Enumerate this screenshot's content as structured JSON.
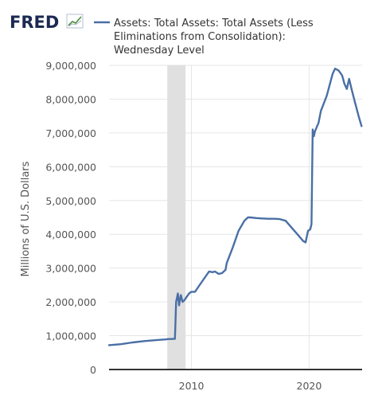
{
  "brand": {
    "logo_text": "FRED",
    "logo_icon": "fred-chart-logo-icon"
  },
  "legend": {
    "line_color": "#4a6fa5",
    "lines": [
      "Assets: Total Assets: Total Assets (Less",
      "Eliminations from Consolidation):",
      "Wednesday Level"
    ]
  },
  "colors": {
    "plot_background": "#ffffff",
    "grid": "#e6e6e6",
    "recession_band": "#e0e0e0",
    "series_line": "#4a6fa5",
    "axis_text": "#555555",
    "logo": "#1b2a52"
  },
  "chart_data": {
    "type": "line",
    "title": "Assets: Total Assets: Total Assets (Less Eliminations from Consolidation): Wednesday Level",
    "ylabel": "Millions of U.S. Dollars",
    "xlabel": "",
    "ylim": [
      0,
      9000000
    ],
    "xlim": [
      2003.0,
      2024.5
    ],
    "yticks": [
      0,
      1000000,
      2000000,
      3000000,
      4000000,
      5000000,
      6000000,
      7000000,
      8000000,
      9000000
    ],
    "ytick_labels": [
      "0",
      "1,000,000",
      "2,000,000",
      "3,000,000",
      "4,000,000",
      "5,000,000",
      "6,000,000",
      "7,000,000",
      "8,000,000",
      "9,000,000"
    ],
    "xticks": [
      2010,
      2020
    ],
    "xtick_labels": [
      "2010",
      "2020"
    ],
    "grid": true,
    "legend_position": "top",
    "recessions": [
      [
        2007.95,
        2009.5
      ]
    ],
    "series": [
      {
        "x": [
          2003.0,
          2004.0,
          2005.0,
          2006.0,
          2007.0,
          2007.8,
          2008.0,
          2008.6,
          2008.7,
          2008.85,
          2008.95,
          2009.1,
          2009.25,
          2009.4,
          2009.6,
          2009.8,
          2010.0,
          2010.3,
          2010.6,
          2011.0,
          2011.5,
          2011.8,
          2012.0,
          2012.3,
          2012.6,
          2012.9,
          2013.0,
          2013.5,
          2014.0,
          2014.5,
          2014.8,
          2015.0,
          2015.5,
          2016.0,
          2016.5,
          2017.0,
          2017.5,
          2018.0,
          2018.5,
          2019.0,
          2019.5,
          2019.7,
          2019.9,
          2020.1,
          2020.2,
          2020.3,
          2020.4,
          2020.5,
          2020.8,
          2021.0,
          2021.5,
          2022.0,
          2022.2,
          2022.5,
          2022.8,
          2023.0,
          2023.2,
          2023.4,
          2023.6,
          2023.9,
          2024.2,
          2024.45
        ],
        "y": [
          720000,
          750000,
          800000,
          840000,
          870000,
          890000,
          900000,
          910000,
          2000000,
          2250000,
          1900000,
          2200000,
          2000000,
          2050000,
          2150000,
          2250000,
          2300000,
          2300000,
          2450000,
          2650000,
          2900000,
          2880000,
          2900000,
          2830000,
          2850000,
          2950000,
          3150000,
          3600000,
          4100000,
          4400000,
          4500000,
          4500000,
          4480000,
          4470000,
          4460000,
          4460000,
          4450000,
          4400000,
          4200000,
          4000000,
          3800000,
          3760000,
          4100000,
          4150000,
          4300000,
          7100000,
          6900000,
          7050000,
          7300000,
          7650000,
          8100000,
          8750000,
          8900000,
          8850000,
          8700000,
          8450000,
          8300000,
          8600000,
          8300000,
          7900000,
          7500000,
          7200000
        ]
      }
    ]
  }
}
